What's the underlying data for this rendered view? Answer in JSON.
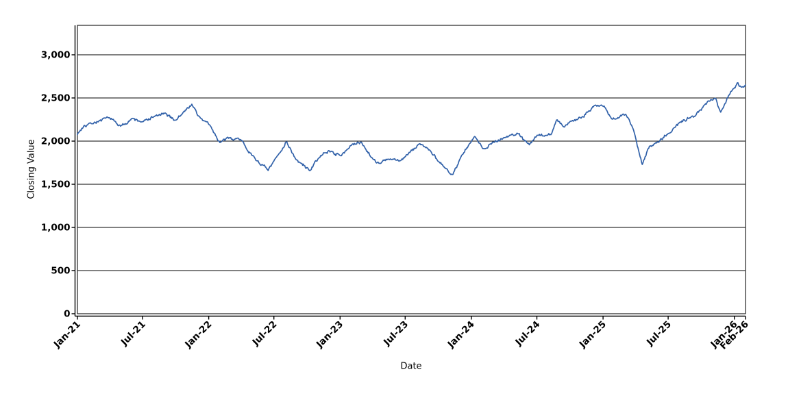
{
  "page": {
    "background_color": "#ffffff"
  },
  "chart_data": {
    "type": "line",
    "title": "",
    "xlabel": "Date",
    "ylabel": "Closing Value",
    "grid": "horizontal-only",
    "legend": "none",
    "axis_color": "#000000",
    "gridline_color": "#000000",
    "ylim": [
      0,
      3341
    ],
    "y_ticks": [
      0,
      500,
      1000,
      1500,
      2000,
      2500,
      3000
    ],
    "y_tick_labels": [
      "0",
      "500",
      "1,000",
      "1,500",
      "2,000",
      "2,500",
      "3,000"
    ],
    "x_range": [
      "2021-01-01",
      "2026-02-01"
    ],
    "x_ticks": [
      {
        "label": "Jan-21",
        "date": "2021-01-01"
      },
      {
        "label": "Jul-21",
        "date": "2021-07-01"
      },
      {
        "label": "Jan-22",
        "date": "2022-01-01"
      },
      {
        "label": "Jul-22",
        "date": "2022-07-01"
      },
      {
        "label": "Jan-23",
        "date": "2023-01-01"
      },
      {
        "label": "Jul-23",
        "date": "2023-07-01"
      },
      {
        "label": "Jan-24",
        "date": "2024-01-01"
      },
      {
        "label": "Jul-24",
        "date": "2024-07-01"
      },
      {
        "label": "Jan-25",
        "date": "2025-01-01"
      },
      {
        "label": "Jul-25",
        "date": "2025-07-01"
      },
      {
        "label": "Jan-26",
        "date": "2026-01-01"
      },
      {
        "label": "Feb-26",
        "date": "2026-02-01"
      }
    ],
    "series": [
      {
        "name": "Closing Value",
        "color": "#3161a9",
        "points": [
          [
            "2021-01-01",
            2080
          ],
          [
            "2021-01-20",
            2180
          ],
          [
            "2021-02-01",
            2200
          ],
          [
            "2021-03-01",
            2230
          ],
          [
            "2021-04-01",
            2270
          ],
          [
            "2021-05-01",
            2170
          ],
          [
            "2021-06-01",
            2260
          ],
          [
            "2021-07-01",
            2220
          ],
          [
            "2021-08-01",
            2280
          ],
          [
            "2021-09-01",
            2320
          ],
          [
            "2021-10-01",
            2240
          ],
          [
            "2021-11-15",
            2430
          ],
          [
            "2021-12-01",
            2300
          ],
          [
            "2022-01-05",
            2180
          ],
          [
            "2022-02-01",
            1980
          ],
          [
            "2022-03-01",
            2040
          ],
          [
            "2022-04-01",
            2020
          ],
          [
            "2022-05-01",
            1830
          ],
          [
            "2022-06-15",
            1660
          ],
          [
            "2022-07-15",
            1850
          ],
          [
            "2022-08-05",
            2000
          ],
          [
            "2022-09-01",
            1780
          ],
          [
            "2022-10-10",
            1660
          ],
          [
            "2022-11-01",
            1800
          ],
          [
            "2022-12-01",
            1890
          ],
          [
            "2023-01-01",
            1830
          ],
          [
            "2023-02-01",
            1950
          ],
          [
            "2023-03-01",
            1990
          ],
          [
            "2023-04-01",
            1800
          ],
          [
            "2023-04-20",
            1740
          ],
          [
            "2023-05-15",
            1790
          ],
          [
            "2023-06-15",
            1770
          ],
          [
            "2023-07-15",
            1870
          ],
          [
            "2023-08-10",
            1970
          ],
          [
            "2023-09-01",
            1920
          ],
          [
            "2023-10-01",
            1760
          ],
          [
            "2023-11-10",
            1615
          ],
          [
            "2023-12-01",
            1800
          ],
          [
            "2024-01-10",
            2050
          ],
          [
            "2024-02-05",
            1910
          ],
          [
            "2024-03-01",
            1990
          ],
          [
            "2024-04-01",
            2040
          ],
          [
            "2024-05-10",
            2090
          ],
          [
            "2024-06-10",
            1960
          ],
          [
            "2024-07-01",
            2060
          ],
          [
            "2024-08-10",
            2080
          ],
          [
            "2024-08-25",
            2250
          ],
          [
            "2024-09-15",
            2160
          ],
          [
            "2024-10-01",
            2230
          ],
          [
            "2024-11-01",
            2270
          ],
          [
            "2024-12-10",
            2420
          ],
          [
            "2025-01-05",
            2400
          ],
          [
            "2025-01-25",
            2250
          ],
          [
            "2025-03-05",
            2310
          ],
          [
            "2025-03-25",
            2150
          ],
          [
            "2025-04-20",
            1730
          ],
          [
            "2025-05-10",
            1940
          ],
          [
            "2025-06-01",
            1990
          ],
          [
            "2025-07-01",
            2090
          ],
          [
            "2025-08-01",
            2210
          ],
          [
            "2025-09-01",
            2270
          ],
          [
            "2025-10-01",
            2360
          ],
          [
            "2025-10-20",
            2470
          ],
          [
            "2025-11-10",
            2500
          ],
          [
            "2025-11-24",
            2330
          ],
          [
            "2025-12-15",
            2520
          ],
          [
            "2026-01-10",
            2680
          ],
          [
            "2026-01-20",
            2620
          ],
          [
            "2026-02-01",
            2655
          ]
        ]
      }
    ]
  }
}
